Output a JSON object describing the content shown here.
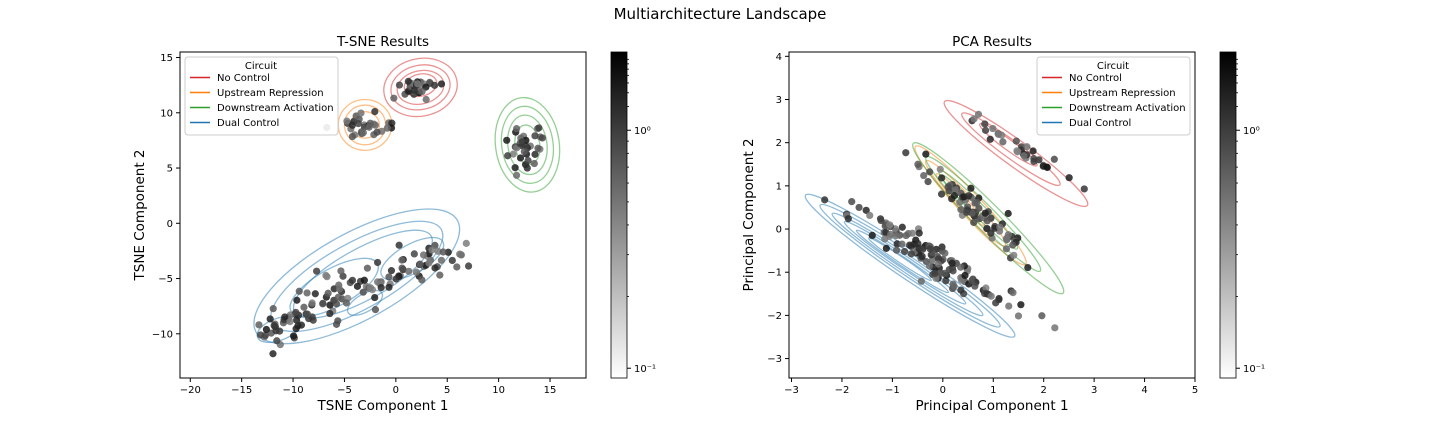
{
  "figure": {
    "title": "Multiarchitecture Landscape"
  },
  "colors": {
    "No Control": "#d62728",
    "Upstream Repression": "#ff7f0e",
    "Downstream Activation": "#2ca02c",
    "Dual Control": "#1f77b4"
  },
  "chart_data": [
    {
      "type": "scatter",
      "title": "T-SNE Results",
      "xlabel": "TSNE Component 1",
      "ylabel": "TSNE Component 2",
      "xlim": [
        -21,
        18.5
      ],
      "ylim": [
        -14,
        15.5
      ],
      "xticks": [
        -20,
        -15,
        -10,
        -5,
        0,
        5,
        10,
        15
      ],
      "yticks": [
        -10,
        -5,
        0,
        5,
        10,
        15
      ],
      "legend": {
        "title": "Circuit",
        "position": "upper-left",
        "entries": [
          "No Control",
          "Upstream Repression",
          "Downstream Activation",
          "Dual Control"
        ]
      },
      "colorbar": {
        "scale": "log",
        "ticks": [
          "10⁰",
          "10⁻¹"
        ],
        "color": "gray"
      },
      "series": [
        {
          "name": "No Control",
          "center": [
            2.3,
            12.3
          ],
          "spread": [
            1.0,
            0.8
          ],
          "count": 35,
          "contours": [
            [
              2.4,
              12.3,
              3.6,
              2.6,
              12
            ],
            [
              2.4,
              12.3,
              2.9,
              2.0,
              12
            ],
            [
              2.4,
              12.3,
              2.3,
              1.5,
              12
            ],
            [
              2.4,
              12.5,
              1.6,
              1.0,
              12
            ]
          ]
        },
        {
          "name": "Upstream Repression",
          "center": [
            -3.0,
            8.9
          ],
          "spread": [
            1.1,
            0.8
          ],
          "count": 30,
          "contours": [
            [
              -3.0,
              8.9,
              2.6,
              2.3,
              0
            ],
            [
              -3.0,
              8.9,
              2.0,
              1.8,
              0
            ],
            [
              -3.0,
              8.9,
              1.4,
              1.2,
              0
            ]
          ]
        },
        {
          "name": "Downstream Activation",
          "center": [
            12.7,
            7.0
          ],
          "spread": [
            1.1,
            1.5
          ],
          "count": 35,
          "contours": [
            [
              12.8,
              7.1,
              3.1,
              4.3,
              8
            ],
            [
              12.8,
              7.1,
              2.5,
              3.5,
              8
            ],
            [
              12.8,
              7.1,
              1.9,
              2.7,
              8
            ],
            [
              12.8,
              7.1,
              1.2,
              1.8,
              8
            ]
          ]
        },
        {
          "name": "Dual Control",
          "center": [
            -2.5,
            -5.5
          ],
          "spread": [
            5.2,
            1.3
          ],
          "count": 130,
          "contours": [
            [
              -3.8,
              -4.8,
              11.2,
              3.9,
              29
            ],
            [
              -3.8,
              -4.8,
              9.4,
              3.0,
              29
            ],
            [
              -3.2,
              -4.6,
              7.6,
              2.3,
              29
            ],
            [
              -6.0,
              -5.8,
              4.8,
              1.7,
              29
            ],
            [
              1.6,
              -3.2,
              3.4,
              1.3,
              29
            ],
            [
              -11.4,
              -9.6,
              2.2,
              1.0,
              20
            ],
            [
              -3.0,
              -7.2,
              1.9,
              0.8,
              30
            ]
          ]
        }
      ]
    },
    {
      "type": "scatter",
      "title": "PCA Results",
      "xlabel": "Principal Component 1",
      "ylabel": "Principal Component 2",
      "xlim": [
        -3.05,
        5.0
      ],
      "ylim": [
        -3.45,
        4.1
      ],
      "xticks": [
        -3,
        -2,
        -1,
        0,
        1,
        2,
        3,
        4,
        5
      ],
      "yticks": [
        -3,
        -2,
        -1,
        0,
        1,
        2,
        3,
        4
      ],
      "legend": {
        "title": "Circuit",
        "position": "upper-right",
        "entries": [
          "No Control",
          "Upstream Repression",
          "Downstream Activation",
          "Dual Control"
        ]
      },
      "colorbar": {
        "scale": "log",
        "ticks": [
          "10⁰",
          "10⁻¹"
        ],
        "color": "gray"
      },
      "series": [
        {
          "name": "No Control",
          "center": [
            1.5,
            1.9
          ],
          "spread": [
            0.7,
            0.4
          ],
          "count": 32,
          "contours": [
            [
              1.45,
              1.75,
              1.75,
              0.3,
              -36
            ],
            [
              1.35,
              1.85,
              1.2,
              0.2,
              -36
            ],
            [
              1.3,
              1.95,
              0.7,
              0.12,
              -36
            ]
          ]
        },
        {
          "name": "Upstream Repression",
          "center": [
            0.5,
            0.6
          ],
          "spread": [
            0.7,
            0.5
          ],
          "count": 35,
          "contours": [
            [
              0.55,
              0.55,
              1.6,
              0.26,
              -47
            ],
            [
              0.45,
              0.6,
              1.15,
              0.18,
              -47
            ],
            [
              0.35,
              0.68,
              0.7,
              0.11,
              -47
            ]
          ]
        },
        {
          "name": "Downstream Activation",
          "center": [
            0.8,
            0.2
          ],
          "spread": [
            0.8,
            0.6
          ],
          "count": 40,
          "contours": [
            [
              0.9,
              0.25,
              2.1,
              0.32,
              -45
            ],
            [
              0.8,
              0.35,
              1.6,
              0.23,
              -45
            ],
            [
              0.7,
              0.45,
              1.1,
              0.15,
              -45
            ],
            [
              0.35,
              0.8,
              0.55,
              0.09,
              -45
            ]
          ]
        },
        {
          "name": "Dual Control",
          "center": [
            -0.2,
            -0.7
          ],
          "spread": [
            1.0,
            0.7
          ],
          "count": 130,
          "contours": [
            [
              -0.65,
              -0.85,
              2.5,
              0.32,
              -34
            ],
            [
              -0.65,
              -0.85,
              2.15,
              0.25,
              -34
            ],
            [
              -0.7,
              -0.82,
              1.8,
              0.19,
              -34
            ],
            [
              -0.75,
              -0.78,
              1.45,
              0.14,
              -34
            ],
            [
              -0.8,
              -0.75,
              1.1,
              0.1,
              -34
            ],
            [
              -0.85,
              -0.7,
              0.75,
              0.07,
              -34
            ]
          ]
        }
      ]
    }
  ]
}
